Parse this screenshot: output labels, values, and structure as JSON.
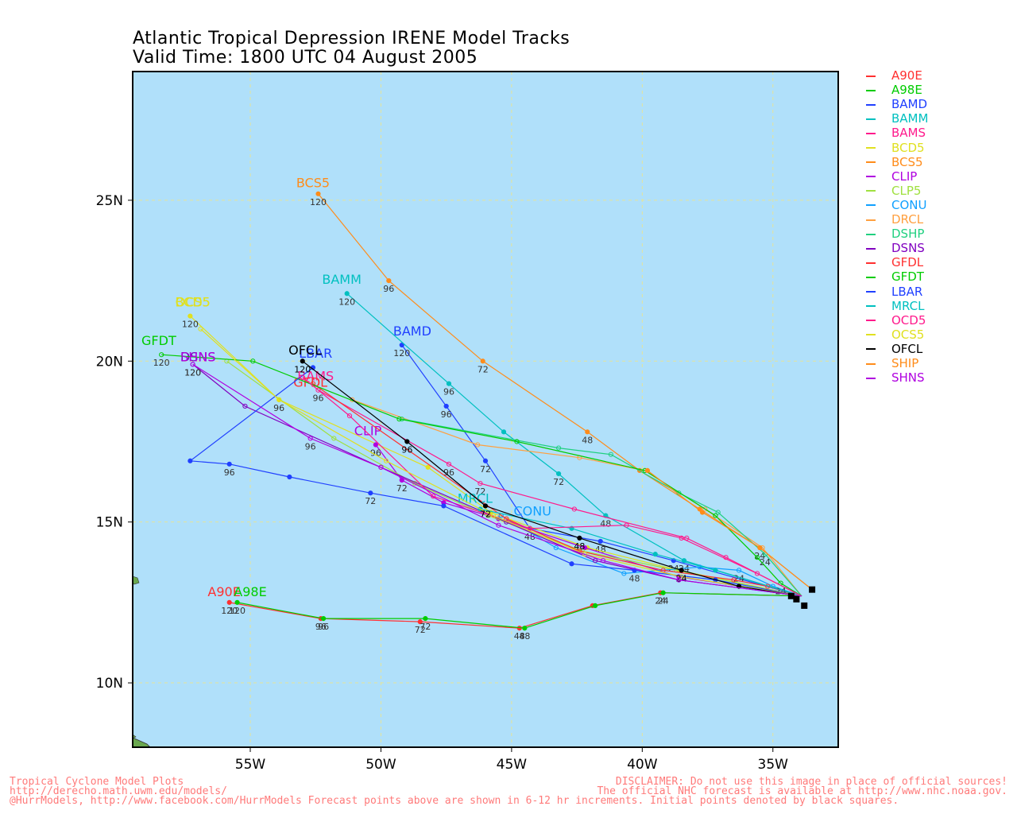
{
  "title": "Atlantic Tropical Depression IRENE Model Tracks",
  "subtitle": "Valid Time: 1800 UTC 04 August 2005",
  "footer": {
    "left": [
      "Tropical Cyclone Model Plots",
      "http://derecho.math.uwm.edu/models/",
      "@HurrModels, http://www.facebook.com/HurrModels  Forecast points above are shown in 6-12 hr increments. Initial points denoted by black squares."
    ],
    "right": [
      "DISCLAIMER: Do not use this image in place of official sources!",
      "The official NHC forecast is available at http://www.nhc.noaa.gov."
    ]
  },
  "axes": {
    "lon_ticks": [
      {
        "value": -55,
        "label": "55W"
      },
      {
        "value": -50,
        "label": "50W"
      },
      {
        "value": -45,
        "label": "45W"
      },
      {
        "value": -40,
        "label": "40W"
      },
      {
        "value": -35,
        "label": "35W"
      }
    ],
    "lat_ticks": [
      {
        "value": 10,
        "label": "10N"
      },
      {
        "value": 15,
        "label": "15N"
      },
      {
        "value": 20,
        "label": "20N"
      },
      {
        "value": 25,
        "label": "25N"
      }
    ],
    "lon_range": [
      -59.5,
      -32.5
    ],
    "lat_range": [
      8,
      29
    ]
  },
  "colors": {
    "ocean": "#b0e0fa",
    "land": "#6aa84f",
    "grid": "#e4e49a"
  },
  "chart_data": {
    "type": "map-tracks",
    "models": [
      {
        "name": "A90E",
        "color": "#ff3030",
        "marker": "closed",
        "label": "A90E",
        "points": [
          [
            -33.9,
            12.7
          ],
          [
            -39.3,
            12.8
          ],
          [
            -41.9,
            12.4
          ],
          [
            -44.7,
            11.7
          ],
          [
            -48.5,
            11.9
          ],
          [
            -52.3,
            12.0
          ],
          [
            -55.8,
            12.5
          ]
        ],
        "hours": [
          null,
          "24",
          null,
          "48",
          "72",
          "96",
          "120"
        ],
        "label_pt": [
          -56.0,
          12.7
        ]
      },
      {
        "name": "A98E",
        "color": "#00cc00",
        "marker": "closed",
        "label": "A98E",
        "points": [
          [
            -33.9,
            12.7
          ],
          [
            -39.2,
            12.8
          ],
          [
            -41.8,
            12.4
          ],
          [
            -44.5,
            11.7
          ],
          [
            -48.3,
            12.0
          ],
          [
            -52.2,
            12.0
          ],
          [
            -55.5,
            12.5
          ]
        ],
        "hours": [
          null,
          "24",
          null,
          "48",
          "72",
          "96",
          "120"
        ],
        "label_pt": [
          -55.0,
          12.7
        ]
      },
      {
        "name": "BAMD",
        "color": "#2040ff",
        "marker": "closed",
        "label": "BAMD",
        "points": [
          [
            -33.9,
            12.7
          ],
          [
            -38.8,
            13.8
          ],
          [
            -41.6,
            14.4
          ],
          [
            -44.3,
            14.8
          ],
          [
            -46.0,
            16.9
          ],
          [
            -47.5,
            18.6
          ],
          [
            -49.2,
            20.5
          ]
        ],
        "hours": [
          null,
          "24",
          "48",
          "48",
          "72",
          "96",
          "120"
        ],
        "label_pt": [
          -48.8,
          20.8
        ]
      },
      {
        "name": "BAMM",
        "color": "#00c0c0",
        "marker": "closed",
        "label": "BAMM",
        "points": [
          [
            -33.9,
            12.7
          ],
          [
            -38.4,
            13.8
          ],
          [
            -41.4,
            15.2
          ],
          [
            -43.2,
            16.5
          ],
          [
            -45.3,
            17.8
          ],
          [
            -47.4,
            19.3
          ],
          [
            -51.3,
            22.1
          ]
        ],
        "hours": [
          null,
          "24",
          "48",
          "72",
          null,
          "96",
          "120"
        ],
        "label_pt": [
          -51.5,
          22.4
        ]
      },
      {
        "name": "BAMS",
        "color": "#ff1a8c",
        "marker": "open",
        "label": "BAMS",
        "points": [
          [
            -33.9,
            12.7
          ],
          [
            -36.8,
            13.9
          ],
          [
            -38.3,
            14.5
          ],
          [
            -42.6,
            15.4
          ],
          [
            -46.2,
            16.2
          ],
          [
            -47.4,
            16.8
          ],
          [
            -52.4,
            19.1
          ]
        ],
        "hours": [
          null,
          null,
          null,
          null,
          "72",
          "96",
          "96"
        ],
        "label_pt": [
          -52.5,
          19.4
        ]
      },
      {
        "name": "BCD5",
        "color": "#e0e020",
        "marker": "closed",
        "label": "BCD5",
        "points": [
          [
            -33.9,
            12.7
          ],
          [
            -38.6,
            13.5
          ],
          [
            -42.1,
            14.2
          ],
          [
            -45.8,
            15.3
          ],
          [
            -48.2,
            16.7
          ],
          [
            -53.9,
            18.8
          ],
          [
            -57.3,
            21.4
          ]
        ],
        "hours": [
          null,
          null,
          null,
          null,
          null,
          "96",
          "120"
        ],
        "label_pt": [
          -57.2,
          21.7
        ]
      },
      {
        "name": "BCS5",
        "color": "#ff8c1a",
        "marker": "closed",
        "label": "BCS5",
        "points": [
          [
            -33.5,
            12.9
          ],
          [
            -35.5,
            14.2
          ],
          [
            -37.8,
            15.4
          ],
          [
            -40.1,
            16.6
          ],
          [
            -42.1,
            17.8
          ],
          [
            -46.1,
            20.0
          ],
          [
            -49.7,
            22.5
          ],
          [
            -52.4,
            25.2
          ]
        ],
        "hours": [
          null,
          "24",
          null,
          null,
          "48",
          "72",
          "96",
          "120"
        ],
        "label_pt": [
          -52.6,
          25.4
        ]
      },
      {
        "name": "CLIP",
        "color": "#b000e0",
        "marker": "closed",
        "label": "CLIP",
        "points": [
          [
            -33.9,
            12.7
          ],
          [
            -38.6,
            13.3
          ],
          [
            -42.2,
            14.2
          ],
          [
            -45.5,
            15.1
          ],
          [
            -47.6,
            15.6
          ],
          [
            -49.2,
            16.3
          ],
          [
            -50.2,
            17.4
          ]
        ],
        "hours": [
          null,
          null,
          null,
          null,
          null,
          "72",
          "96"
        ],
        "label_pt": [
          -50.5,
          17.7
        ]
      },
      {
        "name": "CLP5",
        "color": "#a0e040",
        "marker": "open",
        "label": "CLP5",
        "points": [
          [
            -33.9,
            12.7
          ],
          [
            -38.7,
            13.5
          ],
          [
            -42.3,
            14.1
          ],
          [
            -45.9,
            15.2
          ],
          [
            -48.7,
            16.2
          ],
          [
            -51.8,
            17.6
          ],
          [
            -55.9,
            20.0
          ]
        ],
        "hours": [
          null,
          null,
          null,
          null,
          null,
          null,
          null
        ],
        "label_pt": null
      },
      {
        "name": "CONU",
        "color": "#10a0ff",
        "marker": "open",
        "label": "CONU",
        "points": [
          [
            -33.9,
            12.7
          ],
          [
            -35.0,
            13.0
          ],
          [
            -36.3,
            13.5
          ],
          [
            -37.8,
            13.6
          ],
          [
            -40.7,
            13.4
          ],
          [
            -43.3,
            14.2
          ],
          [
            -45.4,
            15.2
          ]
        ],
        "hours": [
          null,
          null,
          "24",
          null,
          null,
          null,
          null
        ],
        "label_pt": [
          -44.2,
          15.2
        ]
      },
      {
        "name": "DRCL",
        "color": "#ffa040",
        "marker": "open",
        "label": "DRCL",
        "points": [
          [
            -33.9,
            12.7
          ],
          [
            -35.4,
            14.2
          ],
          [
            -37.6,
            15.4
          ],
          [
            -39.9,
            16.6
          ],
          [
            -42.4,
            17.0
          ],
          [
            -46.3,
            17.4
          ],
          [
            -51.1,
            18.8
          ]
        ],
        "hours": [
          null,
          null,
          null,
          null,
          null,
          null,
          null
        ],
        "label_pt": null
      },
      {
        "name": "DSHP",
        "color": "#20d080",
        "marker": "open",
        "label": "DSHP",
        "points": [
          [
            -33.9,
            12.7
          ],
          [
            -35.3,
            14.0
          ],
          [
            -37.1,
            15.3
          ],
          [
            -38.6,
            15.9
          ],
          [
            -41.2,
            17.1
          ],
          [
            -43.2,
            17.3
          ],
          [
            -49.2,
            18.2
          ]
        ],
        "hours": [
          null,
          "24",
          null,
          null,
          null,
          null,
          null
        ],
        "label_pt": null
      },
      {
        "name": "DSNS",
        "color": "#8000c0",
        "marker": "open",
        "label": "DSNS",
        "points": [
          [
            -33.9,
            12.7
          ],
          [
            -38.6,
            13.2
          ],
          [
            -41.8,
            13.8
          ],
          [
            -45.2,
            15.0
          ],
          [
            -50.0,
            16.7
          ],
          [
            -55.2,
            18.6
          ],
          [
            -57.2,
            19.9
          ]
        ],
        "hours": [
          null,
          null,
          null,
          null,
          null,
          null,
          "120"
        ],
        "label_pt": [
          -57.0,
          20.0
        ]
      },
      {
        "name": "GFDL",
        "color": "#ff3030",
        "marker": "open",
        "label": "GFDL",
        "points": [
          [
            -33.9,
            12.7
          ],
          [
            -35.2,
            13.0
          ],
          [
            -36.5,
            13.2
          ],
          [
            -39.2,
            13.5
          ],
          [
            -42.4,
            14.1
          ],
          [
            -45.2,
            15.1
          ],
          [
            -52.6,
            19.3
          ]
        ],
        "hours": [
          null,
          null,
          null,
          null,
          null,
          null,
          null
        ],
        "label_pt": [
          -52.7,
          19.2
        ]
      },
      {
        "name": "GFDT",
        "color": "#00cc00",
        "marker": "open",
        "label": "GFDT",
        "points": [
          [
            -33.9,
            12.7
          ],
          [
            -34.7,
            13.1
          ],
          [
            -35.6,
            13.9
          ],
          [
            -37.2,
            15.2
          ],
          [
            -39.9,
            16.6
          ],
          [
            -44.8,
            17.5
          ],
          [
            -49.3,
            18.2
          ],
          [
            -54.9,
            20.0
          ],
          [
            -58.4,
            20.2
          ]
        ],
        "hours": [
          null,
          "24",
          null,
          null,
          null,
          null,
          null,
          null,
          "120"
        ],
        "label_pt": [
          -58.5,
          20.5
        ]
      },
      {
        "name": "LBAR",
        "color": "#2040ff",
        "marker": "closed",
        "label": "LBAR",
        "points": [
          [
            -33.9,
            12.7
          ],
          [
            -37.2,
            13.2
          ],
          [
            -40.3,
            13.5
          ],
          [
            -42.7,
            13.7
          ],
          [
            -47.6,
            15.5
          ],
          [
            -50.4,
            15.9
          ],
          [
            -53.5,
            16.4
          ],
          [
            -55.8,
            16.8
          ],
          [
            -57.3,
            16.9
          ],
          [
            -52.6,
            19.8
          ]
        ],
        "hours": [
          null,
          null,
          "48",
          null,
          null,
          "72",
          null,
          "96",
          null,
          null
        ],
        "label_pt": [
          -52.5,
          20.1
        ]
      },
      {
        "name": "MRCL",
        "color": "#00c0c0",
        "marker": "closed",
        "label": "MRCL",
        "points": [
          [
            -33.9,
            12.7
          ],
          [
            -37.2,
            13.5
          ],
          [
            -39.5,
            14.0
          ],
          [
            -42.7,
            14.8
          ],
          [
            -46.2,
            15.4
          ]
        ],
        "hours": [
          null,
          null,
          null,
          null,
          null
        ],
        "label_pt": [
          -46.4,
          15.6
        ]
      },
      {
        "name": "OCD5",
        "color": "#ff1a8c",
        "marker": "open",
        "label": "OCD5",
        "points": [
          [
            -33.9,
            12.7
          ],
          [
            -35.6,
            13.4
          ],
          [
            -38.5,
            14.5
          ],
          [
            -40.6,
            14.9
          ],
          [
            -44.3,
            14.8
          ],
          [
            -48.0,
            15.8
          ],
          [
            -51.2,
            18.3
          ],
          [
            -53.0,
            19.5
          ]
        ],
        "hours": [
          null,
          null,
          null,
          null,
          null,
          null,
          null,
          null
        ],
        "label_pt": null
      },
      {
        "name": "OCS5",
        "color": "#e0e020",
        "marker": "open",
        "label": "OCS5",
        "points": [
          [
            -33.9,
            12.7
          ],
          [
            -38.5,
            13.3
          ],
          [
            -42.2,
            14.0
          ],
          [
            -45.7,
            15.2
          ],
          [
            -49.8,
            16.9
          ],
          [
            -53.9,
            18.8
          ],
          [
            -56.9,
            21.0
          ]
        ],
        "hours": [
          null,
          null,
          null,
          null,
          null,
          null,
          null
        ],
        "label_pt": [
          -57.2,
          21.7
        ]
      },
      {
        "name": "OFCL",
        "color": "#000000",
        "marker": "closed",
        "label": "OFCL",
        "points": [
          [
            -34.0,
            12.7
          ],
          [
            -36.3,
            13.0
          ],
          [
            -38.5,
            13.5
          ],
          [
            -42.4,
            14.5
          ],
          [
            -46.0,
            15.5
          ],
          [
            -49.0,
            17.5
          ],
          [
            -53.0,
            20.0
          ]
        ],
        "hours": [
          null,
          null,
          "24",
          "48",
          "72",
          "96",
          "120"
        ],
        "label_pt": [
          -52.9,
          20.2
        ]
      },
      {
        "name": "SHIP",
        "color": "#ff8c1a",
        "marker": "closed",
        "label": "SHIP",
        "points": [
          [
            -33.5,
            12.9
          ],
          [
            -35.5,
            14.2
          ],
          [
            -37.7,
            15.3
          ],
          [
            -39.8,
            16.6
          ]
        ],
        "hours": [
          null,
          null,
          null,
          null
        ],
        "label_pt": null
      },
      {
        "name": "SHNS",
        "color": "#b000e0",
        "marker": "open",
        "label": "SHNS",
        "points": [
          [
            -33.9,
            12.7
          ],
          [
            -38.6,
            13.2
          ],
          [
            -41.5,
            13.8
          ],
          [
            -45.5,
            14.9
          ],
          [
            -50.0,
            16.7
          ],
          [
            -52.7,
            17.6
          ],
          [
            -57.2,
            19.9
          ]
        ],
        "hours": [
          null,
          null,
          null,
          null,
          null,
          "96",
          "120"
        ],
        "label_pt": [
          -57.0,
          20.0
        ]
      }
    ],
    "initial_points": [
      [
        -33.5,
        12.9
      ],
      [
        -33.8,
        12.4
      ],
      [
        -34.1,
        12.6
      ],
      [
        -34.3,
        12.7
      ]
    ]
  }
}
